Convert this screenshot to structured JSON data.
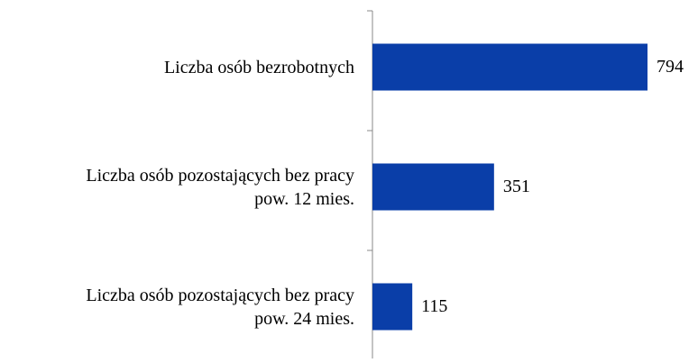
{
  "chart_data": {
    "type": "barh",
    "categories": [
      "Liczba osób bezrobotnych",
      "Liczba osób pozostających bez pracy\npow. 12 mies.",
      "Liczba osób pozostających bez pracy\npow. 24 mies."
    ],
    "values": [
      794,
      351,
      115
    ],
    "color": "#0a3ea8"
  }
}
